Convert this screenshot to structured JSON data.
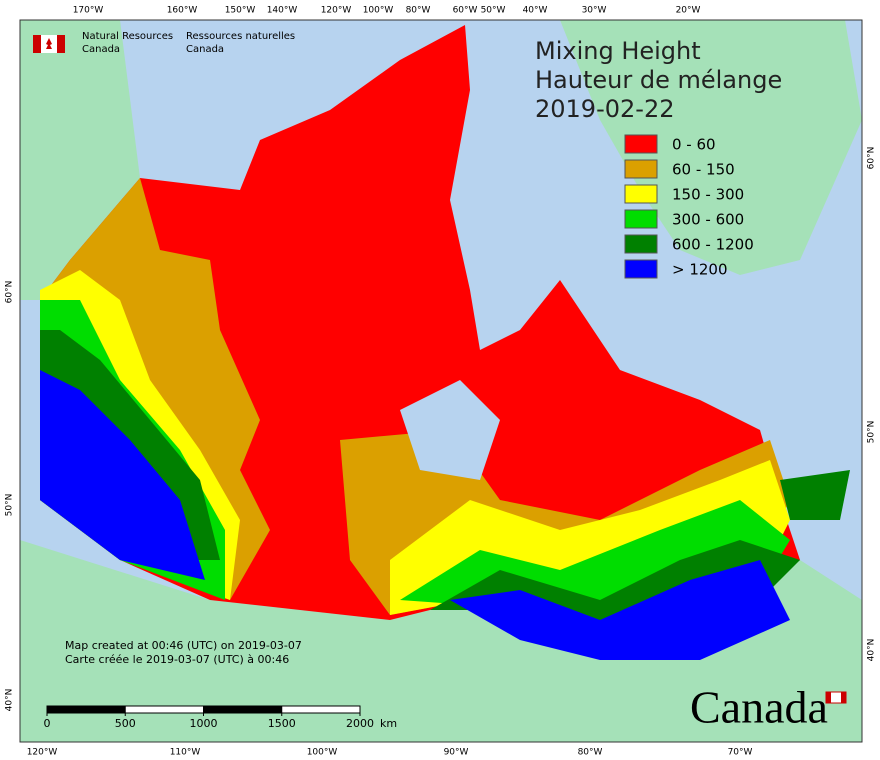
{
  "header": {
    "org_en": [
      "Natural Resources",
      "Canada"
    ],
    "org_fr": [
      "Ressources naturelles",
      "Canada"
    ]
  },
  "title": [
    "Mixing Height",
    "Hauteur de mélange",
    "2019-02-22"
  ],
  "legend": [
    {
      "label": "0 - 60",
      "color": "#ff0000"
    },
    {
      "label": "60 - 150",
      "color": "#dba000"
    },
    {
      "label": "150 - 300",
      "color": "#ffff00"
    },
    {
      "label": "300 - 600",
      "color": "#00dd00"
    },
    {
      "label": "600 - 1200",
      "color": "#008000"
    },
    {
      "label": "> 1200",
      "color": "#0000ff"
    }
  ],
  "notes": [
    "Map created at 00:46 (UTC) on 2019-03-07",
    "Carte créée le 2019-03-07 (UTC) à 00:46"
  ],
  "scale_bar": {
    "ticks": [
      0,
      500,
      1000,
      1500,
      2000
    ],
    "unit": "km"
  },
  "graticule": {
    "top": [
      "170°W",
      "160°W",
      "150°W",
      "140°W",
      "120°W",
      "100°W",
      "80°W",
      "60°W",
      "50°W",
      "40°W",
      "30°W",
      "20°W"
    ],
    "bottom": [
      "120°W",
      "110°W",
      "100°W",
      "90°W",
      "80°W",
      "70°W"
    ],
    "left": [
      "60°N",
      "50°N",
      "40°N"
    ],
    "right": [
      "60°N",
      "50°N",
      "40°N"
    ]
  },
  "wordmark": "Canada"
}
